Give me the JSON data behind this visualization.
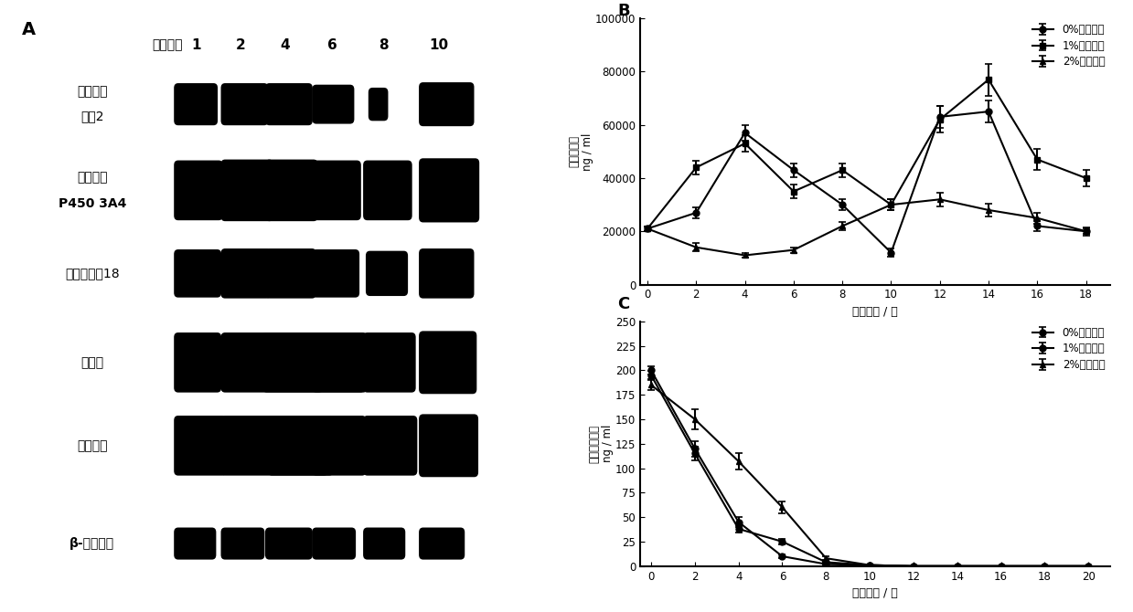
{
  "panel_A_label": "A",
  "panel_B_label": "B",
  "panel_C_label": "C",
  "day_labels": [
    "1",
    "2",
    "4",
    "6",
    "8",
    "10"
  ],
  "day_header": "培养天数",
  "panel_B_xlabel": "培养时间 / 天",
  "panel_B_ylabel": "白蛋白分泌\nng / ml",
  "panel_B_ylim": [
    0,
    100000
  ],
  "panel_B_yticks": [
    0,
    20000,
    40000,
    60000,
    80000,
    100000
  ],
  "panel_B_xticks": [
    0,
    2,
    4,
    6,
    8,
    10,
    12,
    14,
    16,
    18
  ],
  "panel_C_xlabel": "培养时间 / 天",
  "panel_C_ylabel": "甲胎蛋白分泌\nng / ml",
  "panel_C_ylim": [
    0,
    250
  ],
  "panel_C_yticks": [
    0,
    25,
    50,
    75,
    100,
    125,
    150,
    175,
    200,
    225,
    250
  ],
  "panel_C_xticks": [
    0,
    2,
    4,
    6,
    8,
    10,
    12,
    14,
    16,
    18,
    20
  ],
  "legend_labels": [
    "0%二甲亚砧",
    "1%二甲亚砧",
    "2%二甲亚砧"
  ],
  "row_labels": [
    "多重耐药",
    "蛋白2",
    "细胞色素",
    "P450 3A4",
    "细胞角蛋白18",
    "白蛋白",
    "甲胎蛋白",
    "β-肌动蛋白"
  ],
  "series_B": {
    "s0": {
      "x": [
        0,
        2,
        4,
        6,
        8,
        10,
        12,
        14,
        16,
        18
      ],
      "y": [
        21000,
        27000,
        57000,
        43000,
        30000,
        12000,
        63000,
        65000,
        22000,
        20000
      ],
      "yerr": [
        800,
        2000,
        3000,
        2500,
        2000,
        1500,
        4000,
        4000,
        2000,
        1000
      ]
    },
    "s1": {
      "x": [
        0,
        2,
        4,
        6,
        8,
        10,
        12,
        14,
        16,
        18
      ],
      "y": [
        21000,
        44000,
        53000,
        35000,
        43000,
        30000,
        62000,
        77000,
        47000,
        40000
      ],
      "yerr": [
        800,
        2500,
        3000,
        2500,
        2500,
        2000,
        5000,
        6000,
        4000,
        3000
      ]
    },
    "s2": {
      "x": [
        0,
        2,
        4,
        6,
        8,
        10,
        12,
        14,
        16,
        18
      ],
      "y": [
        21000,
        14000,
        11000,
        13000,
        22000,
        30000,
        32000,
        28000,
        25000,
        20000
      ],
      "yerr": [
        800,
        1500,
        1000,
        1000,
        1500,
        2000,
        2500,
        2500,
        2000,
        1500
      ]
    }
  },
  "series_C": {
    "s0": {
      "x": [
        0,
        2,
        4,
        6,
        8,
        10,
        12,
        14,
        16,
        18,
        20
      ],
      "y": [
        200,
        120,
        45,
        10,
        2,
        1,
        0,
        0,
        0,
        0,
        0
      ],
      "yerr": [
        4,
        8,
        5,
        2,
        0.5,
        0.3,
        0,
        0,
        0,
        0,
        0
      ]
    },
    "s1": {
      "x": [
        0,
        2,
        4,
        6,
        8,
        10,
        12,
        14,
        16,
        18,
        20
      ],
      "y": [
        195,
        115,
        38,
        25,
        4,
        1,
        0,
        0,
        0,
        0,
        0
      ],
      "yerr": [
        4,
        7,
        4,
        3,
        0.8,
        0.3,
        0,
        0,
        0,
        0,
        0
      ]
    },
    "s2": {
      "x": [
        0,
        2,
        4,
        6,
        8,
        10,
        12,
        14,
        16,
        18,
        20
      ],
      "y": [
        185,
        150,
        107,
        60,
        8,
        1,
        0,
        0,
        0,
        0,
        0
      ],
      "yerr": [
        5,
        10,
        8,
        6,
        2,
        0.3,
        0,
        0,
        0,
        0,
        0
      ]
    }
  },
  "bg_color": "#ffffff"
}
